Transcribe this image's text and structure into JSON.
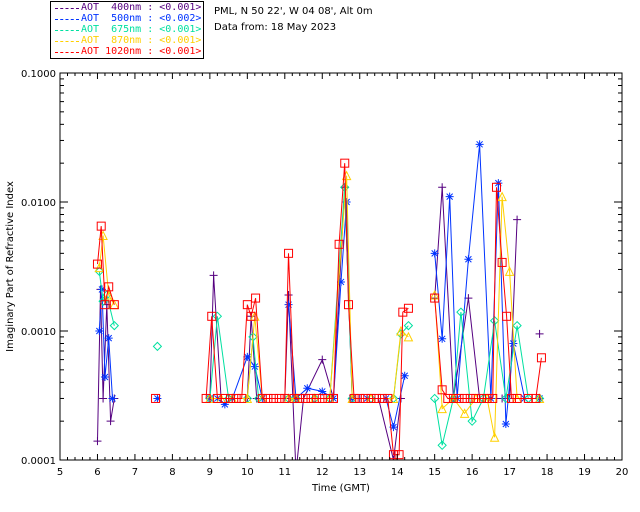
{
  "header": {
    "site": "PML, N 50 22', W 04 08', Alt 0m",
    "date": "Data from: 18 May 2023"
  },
  "legend": [
    {
      "label": "AOT  400nm : <0.001>",
      "color": "#550080"
    },
    {
      "label": "AOT  500nm : <0.002>",
      "color": "#0033ff"
    },
    {
      "label": "AOT  675nm : <0.001>",
      "color": "#00e0a0"
    },
    {
      "label": "AOT  870nm : <0.001>",
      "color": "#ffd000"
    },
    {
      "label": "AOT 1020nm : <0.001>",
      "color": "#ff0000"
    }
  ],
  "chart_data": {
    "type": "line",
    "title": "",
    "xlabel": "Time (GMT)",
    "ylabel": "Imaginary Part of Refractive Index",
    "xlim": [
      5,
      20
    ],
    "ylim": [
      0.0001,
      0.1
    ],
    "yscale": "log",
    "xticks": [
      "5",
      "6",
      "7",
      "8",
      "9",
      "10",
      "11",
      "12",
      "13",
      "14",
      "15",
      "16",
      "17",
      "18",
      "19",
      "20"
    ],
    "yticks": [
      "0.0001",
      "0.0010",
      "0.0100",
      "0.1000"
    ],
    "series": [
      {
        "name": "AOT 400nm",
        "color": "#550080",
        "marker": "plus",
        "x": [
          6.0,
          6.08,
          6.15,
          6.25,
          6.35,
          6.45,
          9.0,
          9.1,
          9.3,
          9.5,
          10.0,
          10.1,
          10.25,
          11.0,
          11.1,
          11.3,
          11.5,
          12.0,
          12.3,
          12.6,
          12.8,
          13.0,
          13.5,
          13.9,
          14.1,
          15.0,
          15.2,
          15.5,
          15.9,
          16.2,
          16.5,
          16.8,
          17.0,
          17.2,
          17.8
        ],
        "y": [
          0.00014,
          0.0021,
          0.0003,
          0.0016,
          0.0002,
          0.0003,
          0.0003,
          0.0027,
          0.0003,
          0.0003,
          0.0003,
          0.0013,
          0.0003,
          0.0003,
          0.0019,
          8e-05,
          0.0003,
          0.0006,
          0.0003,
          0.013,
          0.0003,
          0.0003,
          0.0003,
          0.0001,
          0.0003,
          0.0018,
          0.013,
          0.0003,
          0.0018,
          0.0003,
          0.0003,
          0.0003,
          0.0003,
          0.0073,
          0.00095
        ]
      },
      {
        "name": "AOT 500nm",
        "color": "#0033ff",
        "marker": "asterisk",
        "x": [
          6.05,
          6.12,
          6.2,
          6.3,
          6.4,
          7.6,
          9.0,
          9.2,
          9.4,
          9.6,
          10.0,
          10.2,
          10.4,
          11.1,
          11.3,
          11.6,
          12.0,
          12.3,
          12.5,
          12.65,
          12.8,
          13.2,
          13.7,
          13.9,
          14.2,
          15.0,
          15.2,
          15.4,
          15.6,
          15.9,
          16.2,
          16.5,
          16.7,
          16.9,
          17.1,
          17.4,
          17.8
        ],
        "y": [
          0.001,
          0.0021,
          0.00044,
          0.00088,
          0.0003,
          0.0003,
          0.0003,
          0.0003,
          0.00027,
          0.0003,
          0.00063,
          0.00053,
          0.0003,
          0.0016,
          0.0003,
          0.00036,
          0.00034,
          0.0003,
          0.0024,
          0.01,
          0.0003,
          0.0003,
          0.0003,
          0.00018,
          0.00045,
          0.004,
          0.00087,
          0.011,
          0.0003,
          0.0036,
          0.028,
          0.0003,
          0.014,
          0.00019,
          0.0008,
          0.0003,
          0.0003
        ]
      },
      {
        "name": "AOT 675nm",
        "color": "#00e0a0",
        "marker": "diamond",
        "x": [
          6.05,
          6.15,
          6.25,
          6.45,
          7.6,
          9.0,
          9.2,
          9.5,
          10.0,
          10.15,
          10.3,
          11.1,
          11.3,
          11.8,
          12.2,
          12.6,
          12.8,
          13.3,
          13.9,
          14.1,
          14.3,
          15.0,
          15.2,
          15.5,
          15.7,
          16.0,
          16.3,
          16.6,
          16.9,
          17.2,
          17.5,
          17.8
        ],
        "y": [
          0.0029,
          0.0017,
          0.0019,
          0.0011,
          0.00076,
          0.0003,
          0.0013,
          0.0003,
          0.0003,
          0.0009,
          0.0003,
          0.0003,
          0.0003,
          0.0003,
          0.0003,
          0.013,
          0.0003,
          0.0003,
          0.0003,
          0.00095,
          0.0011,
          0.0003,
          0.00013,
          0.0003,
          0.0014,
          0.0002,
          0.0003,
          0.0012,
          0.0003,
          0.0011,
          0.0003,
          0.0003
        ]
      },
      {
        "name": "AOT 870nm",
        "color": "#ffd000",
        "marker": "triangle",
        "x": [
          6.05,
          6.15,
          6.3,
          6.45,
          9.0,
          9.3,
          9.6,
          10.0,
          10.2,
          10.4,
          11.1,
          11.3,
          11.8,
          12.2,
          12.65,
          12.8,
          13.3,
          13.9,
          14.1,
          14.3,
          15.0,
          15.2,
          15.5,
          15.8,
          16.1,
          16.4,
          16.6,
          16.8,
          17.0,
          17.2,
          17.8
        ],
        "y": [
          0.0031,
          0.0055,
          0.0019,
          0.0016,
          0.0003,
          0.0003,
          0.0003,
          0.0003,
          0.0013,
          0.0003,
          0.0003,
          0.0003,
          0.0003,
          0.0003,
          0.016,
          0.0003,
          0.0003,
          0.0003,
          0.001,
          0.0009,
          0.0019,
          0.00025,
          0.0003,
          0.00023,
          0.0003,
          0.0003,
          0.00015,
          0.011,
          0.0029,
          0.0003,
          0.0003
        ]
      },
      {
        "name": "AOT 1020nm",
        "color": "#ff0000",
        "marker": "square",
        "x": [
          6.0,
          6.1,
          6.2,
          6.3,
          6.45,
          7.55,
          8.9,
          9.05,
          9.2,
          9.4,
          9.55,
          9.7,
          9.85,
          10.0,
          10.1,
          10.22,
          10.4,
          10.55,
          10.7,
          10.85,
          11.0,
          11.1,
          11.25,
          11.4,
          11.55,
          11.7,
          11.85,
          12.0,
          12.15,
          12.3,
          12.45,
          12.6,
          12.7,
          12.85,
          13.0,
          13.15,
          13.3,
          13.45,
          13.6,
          13.75,
          13.9,
          14.05,
          14.15,
          14.3,
          15.0,
          15.2,
          15.35,
          15.5,
          15.65,
          15.8,
          15.95,
          16.1,
          16.25,
          16.4,
          16.55,
          16.65,
          16.8,
          16.92,
          17.05,
          17.2,
          17.5,
          17.7,
          17.85
        ],
        "y": [
          0.0033,
          0.0065,
          0.0016,
          0.0022,
          0.0016,
          0.0003,
          0.0003,
          0.0013,
          0.0003,
          0.0003,
          0.0003,
          0.0003,
          0.0003,
          0.0016,
          0.0013,
          0.0018,
          0.0003,
          0.0003,
          0.0003,
          0.0003,
          0.0003,
          0.004,
          0.0003,
          0.0003,
          0.0003,
          0.0003,
          0.0003,
          0.0003,
          0.0003,
          0.0003,
          0.0047,
          0.02,
          0.0016,
          0.0003,
          0.0003,
          0.0003,
          0.0003,
          0.0003,
          0.0003,
          0.0003,
          0.00011,
          0.00011,
          0.0014,
          0.0015,
          0.0018,
          0.00035,
          0.0003,
          0.0003,
          0.0003,
          0.0003,
          0.0003,
          0.0003,
          0.0003,
          0.0003,
          0.0003,
          0.013,
          0.0034,
          0.0013,
          0.0003,
          0.0003,
          0.0003,
          0.0003,
          0.00062
        ]
      }
    ]
  }
}
